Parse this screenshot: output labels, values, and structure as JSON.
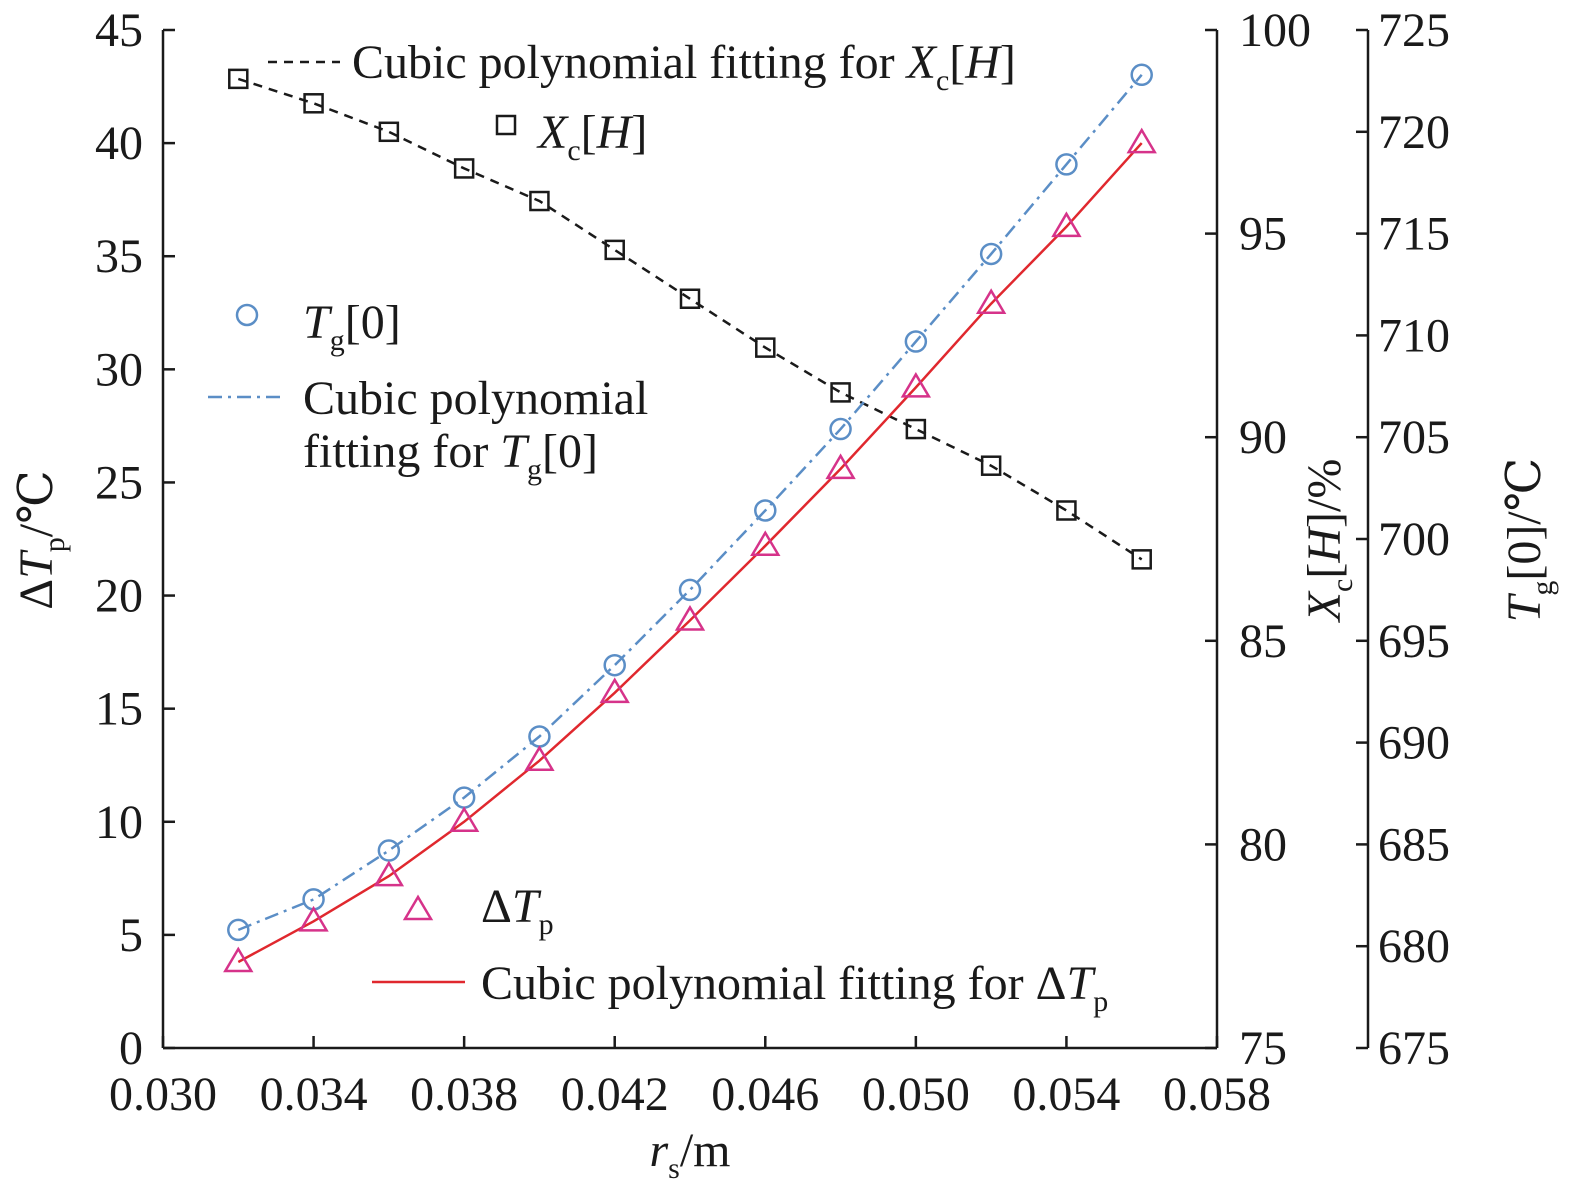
{
  "chart_data": {
    "type": "line",
    "x": [
      0.032,
      0.034,
      0.036,
      0.038,
      0.04,
      0.042,
      0.044,
      0.046,
      0.048,
      0.05,
      0.052,
      0.054,
      0.056
    ],
    "x_axis": {
      "label": {
        "main": "r",
        "sub": "s",
        "unit": "/m"
      },
      "range": [
        0.03,
        0.058
      ],
      "ticks": [
        0.03,
        0.034,
        0.038,
        0.042,
        0.046,
        0.05,
        0.054,
        0.058
      ],
      "tick_labels": [
        "0.030",
        "0.034",
        "0.038",
        "0.042",
        "0.046",
        "0.050",
        "0.054",
        "0.058"
      ]
    },
    "y_axes": [
      {
        "id": "dTp",
        "label": {
          "prefix": "Δ",
          "main": "T",
          "sub": "p",
          "unit": "/℃"
        },
        "range": [
          0,
          45
        ],
        "ticks": [
          0,
          5,
          10,
          15,
          20,
          25,
          30,
          35,
          40,
          45
        ],
        "tick_labels": [
          "0",
          "5",
          "10",
          "15",
          "20",
          "25",
          "30",
          "35",
          "40",
          "45"
        ]
      },
      {
        "id": "Xc",
        "label": {
          "main": "X",
          "sub": "c",
          "bracket": "[",
          "var": "H",
          "close": "]",
          "unit": "/%"
        },
        "range": [
          75,
          100
        ],
        "ticks": [
          75,
          80,
          85,
          90,
          95,
          100
        ],
        "tick_labels": [
          "75",
          "80",
          "85",
          "90",
          "95",
          "100"
        ]
      },
      {
        "id": "Tg",
        "label": {
          "main": "T",
          "sub": "g",
          "bracket": "[0]",
          "unit": "/℃"
        },
        "range": [
          675,
          725
        ],
        "ticks": [
          675,
          680,
          685,
          690,
          695,
          700,
          705,
          710,
          715,
          720,
          725
        ],
        "tick_labels": [
          "675",
          "680",
          "685",
          "690",
          "695",
          "700",
          "705",
          "710",
          "715",
          "720",
          "725"
        ]
      }
    ],
    "series": [
      {
        "id": "Xc",
        "axis": "Xc",
        "marker": "square",
        "line": "dashed",
        "color": "#1a1a1a",
        "values": [
          98.8,
          98.2,
          97.5,
          96.6,
          95.8,
          94.6,
          93.4,
          92.2,
          91.1,
          90.2,
          89.3,
          88.2,
          87.0
        ]
      },
      {
        "id": "Tg",
        "axis": "Tg",
        "marker": "circle",
        "line": "dashdot",
        "color": "#5b8ec6",
        "values": [
          680.8,
          682.3,
          684.7,
          687.3,
          690.3,
          693.8,
          697.5,
          701.4,
          705.4,
          709.7,
          714.0,
          718.4,
          722.8
        ]
      },
      {
        "id": "dTp",
        "axis": "dTp",
        "marker": "triangle",
        "marker_color": "#d6338a",
        "line": "solid",
        "color": "#e0282e",
        "values": [
          3.8,
          5.6,
          7.6,
          10.0,
          12.7,
          15.7,
          18.9,
          22.2,
          25.6,
          29.2,
          32.9,
          36.3,
          40.0
        ]
      }
    ],
    "legend": [
      {
        "id": "Xc",
        "kind": "line",
        "placement": "top",
        "text": "Cubic polynomial fitting for ",
        "math": {
          "main": "X",
          "sub": "c",
          "tail_open": "[",
          "tail_var": "H",
          "tail_close": "]"
        }
      },
      {
        "id": "Xc",
        "kind": "marker",
        "placement": "top",
        "math": {
          "main": "X",
          "sub": "c",
          "tail_open": "[",
          "tail_var": "H",
          "tail_close": "]"
        }
      },
      {
        "id": "Tg",
        "kind": "marker",
        "placement": "left",
        "math": {
          "main": "T",
          "sub": "g",
          "tail": "[0]"
        }
      },
      {
        "id": "Tg",
        "kind": "line",
        "placement": "left",
        "text_line1": "Cubic polynomial",
        "text_line2": "fitting for ",
        "math": {
          "main": "T",
          "sub": "g",
          "tail": "[0]"
        }
      },
      {
        "id": "dTp",
        "kind": "marker",
        "placement": "bottom",
        "math": {
          "prefix": "Δ",
          "main": "T",
          "sub": "p"
        }
      },
      {
        "id": "dTp",
        "kind": "line",
        "placement": "bottom-right",
        "text": "Cubic polynomial fitting for ",
        "math": {
          "prefix": "Δ",
          "main": "T",
          "sub": "p"
        }
      }
    ]
  }
}
